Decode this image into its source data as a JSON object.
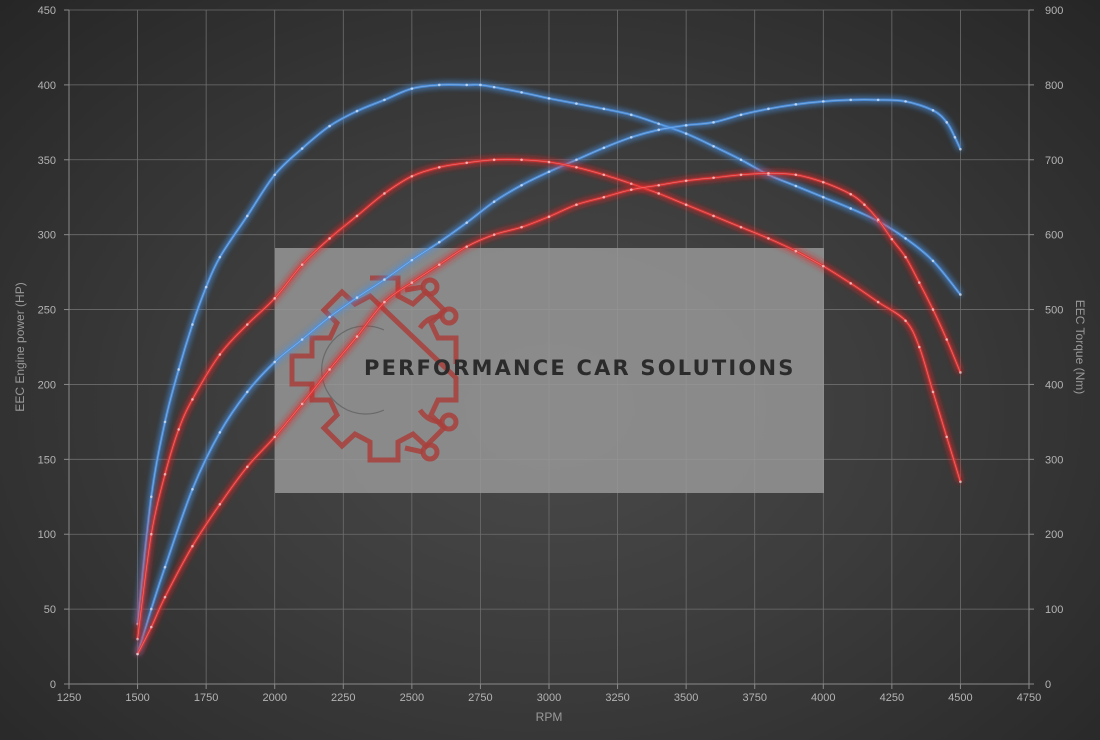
{
  "chart_data": {
    "type": "line",
    "xlabel": "RPM",
    "ylabel_left": "EEC Engine power (HP)",
    "ylabel_right": "EEC Torque (Nm)",
    "xlim": [
      1250,
      4750
    ],
    "ylim_left": [
      0,
      450
    ],
    "ylim_right": [
      0,
      900
    ],
    "x_ticks": [
      1250,
      1500,
      1750,
      2000,
      2250,
      2500,
      2750,
      3000,
      3250,
      3500,
      3750,
      4000,
      4250,
      4500,
      4750
    ],
    "y_ticks_left": [
      0,
      50,
      100,
      150,
      200,
      250,
      300,
      350,
      400,
      450
    ],
    "y_ticks_right": [
      0,
      100,
      200,
      300,
      400,
      500,
      600,
      700,
      800,
      900
    ],
    "grid": true,
    "series": [
      {
        "color": "#4a90e2",
        "axis": "right",
        "x": [
          1500,
          1550,
          1600,
          1650,
          1700,
          1750,
          1800,
          1900,
          2000,
          2100,
          2200,
          2300,
          2400,
          2500,
          2600,
          2700,
          2750,
          2800,
          2900,
          3000,
          3100,
          3200,
          3300,
          3400,
          3500,
          3600,
          3700,
          3800,
          3900,
          4000,
          4100,
          4200,
          4300,
          4400,
          4500
        ],
        "values": [
          80,
          250,
          350,
          420,
          480,
          530,
          570,
          625,
          680,
          715,
          745,
          765,
          780,
          795,
          800,
          800,
          800,
          797,
          790,
          782,
          775,
          768,
          760,
          748,
          735,
          718,
          700,
          680,
          665,
          650,
          635,
          618,
          595,
          565,
          520
        ]
      },
      {
        "color": "#4a90e2",
        "axis": "left",
        "x": [
          1500,
          1550,
          1600,
          1700,
          1800,
          1900,
          2000,
          2100,
          2200,
          2300,
          2400,
          2500,
          2600,
          2700,
          2800,
          2900,
          3000,
          3100,
          3200,
          3300,
          3400,
          3500,
          3600,
          3700,
          3800,
          3900,
          4000,
          4100,
          4200,
          4300,
          4400,
          4450,
          4480,
          4500
        ],
        "values": [
          20,
          50,
          78,
          130,
          168,
          195,
          215,
          230,
          245,
          258,
          270,
          283,
          295,
          308,
          322,
          333,
          342,
          350,
          358,
          365,
          370,
          373,
          375,
          380,
          384,
          387,
          389,
          390,
          390,
          389,
          383,
          375,
          365,
          357
        ]
      },
      {
        "color": "#e53030",
        "axis": "right",
        "x": [
          1500,
          1550,
          1600,
          1650,
          1700,
          1800,
          1900,
          2000,
          2100,
          2200,
          2300,
          2400,
          2500,
          2600,
          2700,
          2800,
          2900,
          3000,
          3100,
          3200,
          3300,
          3400,
          3500,
          3600,
          3700,
          3800,
          3900,
          4000,
          4100,
          4200,
          4300,
          4350,
          4400,
          4450,
          4500
        ],
        "values": [
          60,
          200,
          280,
          340,
          380,
          440,
          480,
          515,
          560,
          595,
          625,
          655,
          678,
          690,
          696,
          700,
          700,
          697,
          690,
          680,
          668,
          655,
          640,
          625,
          610,
          595,
          578,
          558,
          535,
          510,
          485,
          450,
          390,
          330,
          270
        ]
      },
      {
        "color": "#e53030",
        "axis": "left",
        "x": [
          1500,
          1550,
          1600,
          1700,
          1800,
          1900,
          2000,
          2100,
          2200,
          2300,
          2400,
          2500,
          2600,
          2700,
          2800,
          2900,
          3000,
          3100,
          3200,
          3300,
          3400,
          3500,
          3600,
          3700,
          3800,
          3900,
          4000,
          4100,
          4150,
          4200,
          4250,
          4300,
          4350,
          4400,
          4450,
          4500
        ],
        "values": [
          20,
          38,
          58,
          92,
          120,
          145,
          165,
          187,
          210,
          232,
          255,
          268,
          280,
          292,
          300,
          305,
          312,
          320,
          325,
          330,
          333,
          336,
          338,
          340,
          341,
          340,
          335,
          327,
          320,
          310,
          297,
          285,
          268,
          250,
          230,
          208
        ]
      }
    ]
  },
  "watermark": {
    "text": "PERFORMANCE CAR SOLUTIONS",
    "logo_icon": "gear-circuit-icon",
    "logo_color": "#a0403c"
  }
}
